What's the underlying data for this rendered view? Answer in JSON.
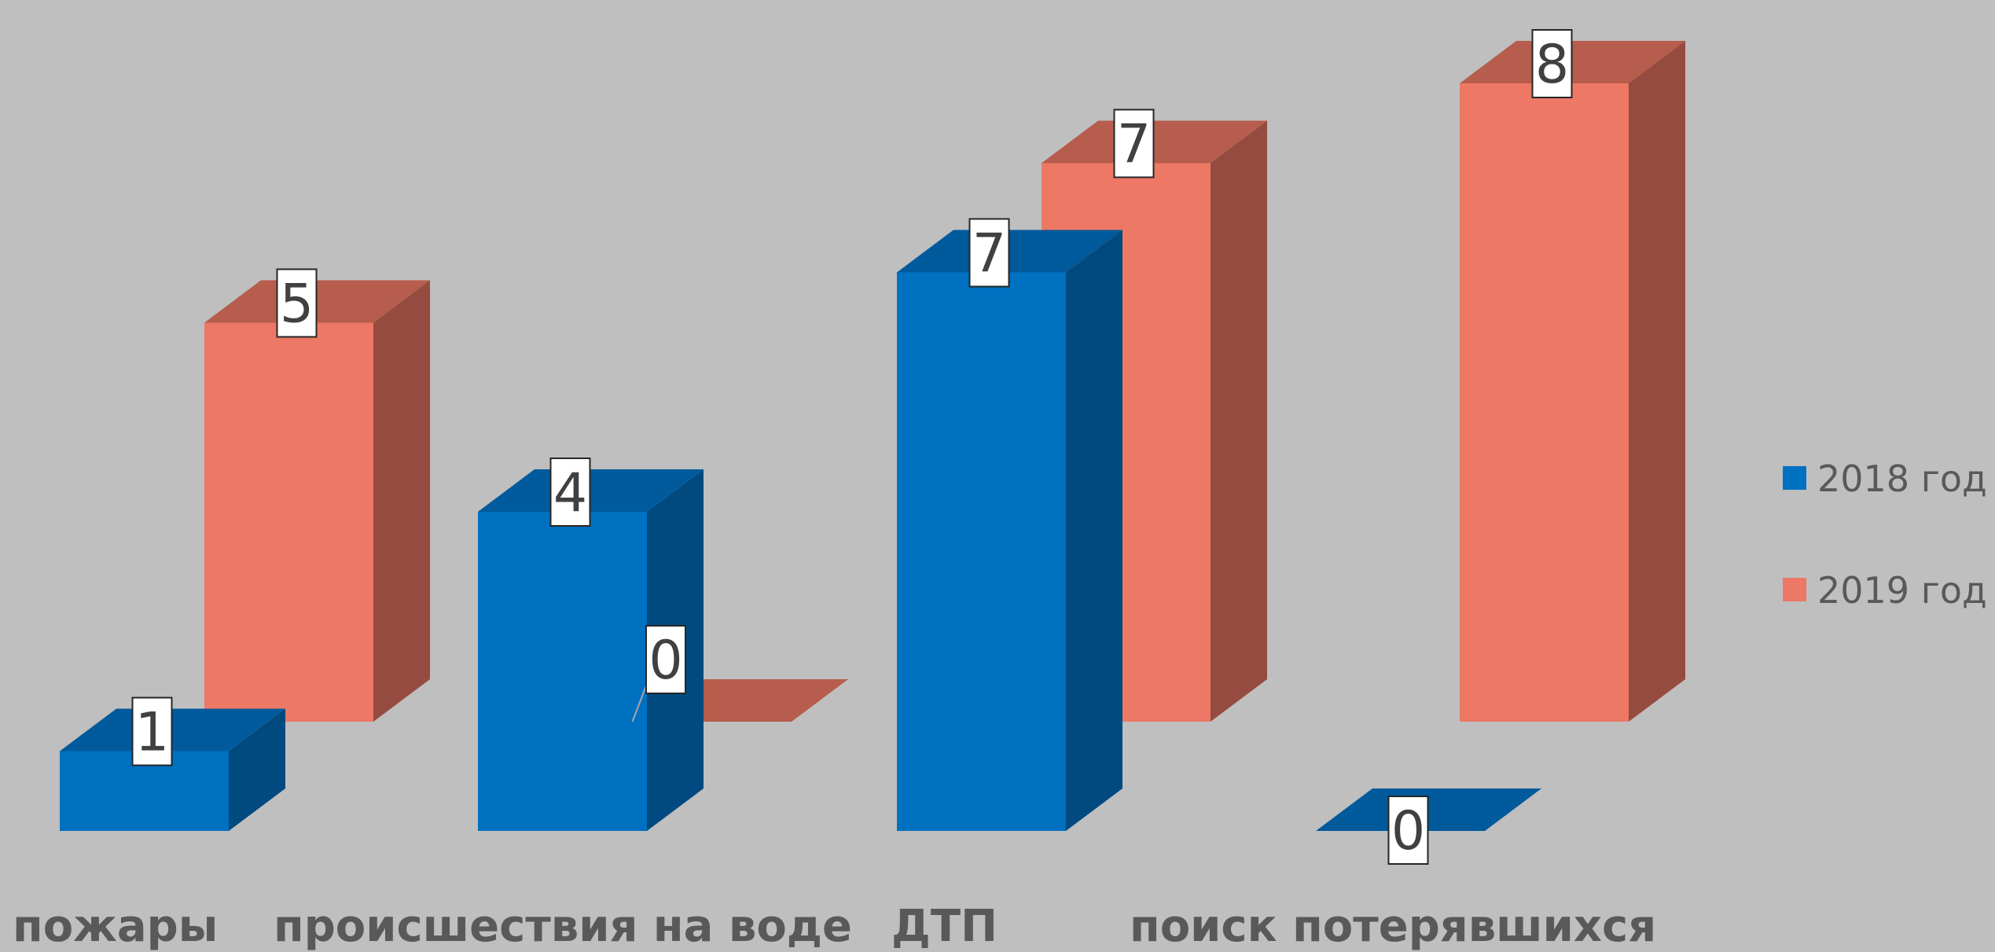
{
  "chart_data": {
    "type": "bar",
    "style": "3d-clustered-column",
    "categories": [
      "пожары",
      "происшествия на воде",
      "ДТП",
      "поиск потерявшихся"
    ],
    "series": [
      {
        "name": "2018 год",
        "values": [
          1,
          4,
          7,
          0
        ],
        "color": "#0070c0",
        "top_color": "#005a9c",
        "side_color": "#004a80"
      },
      {
        "name": "2019 год",
        "values": [
          5,
          0,
          7,
          8
        ],
        "color": "#ec7865",
        "top_color": "#b65d4d",
        "side_color": "#954b3f"
      }
    ],
    "data_labels": true,
    "legend_position": "right",
    "grid": false,
    "background": "#bfbfbf",
    "title": "",
    "xlabel": "",
    "ylabel": ""
  }
}
